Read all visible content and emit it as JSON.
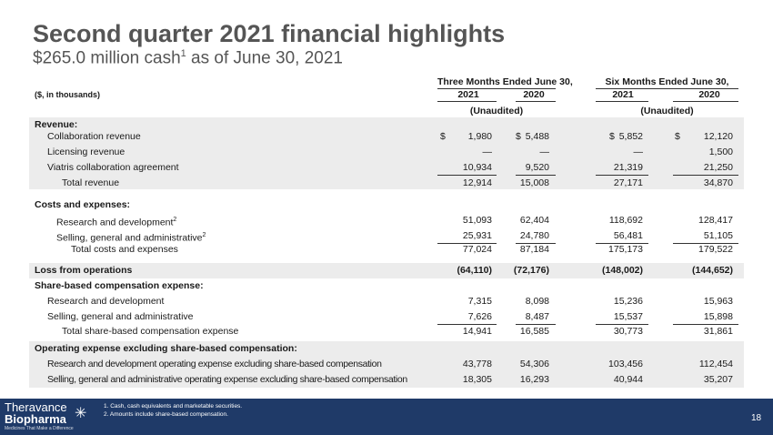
{
  "title": "Second quarter 2021 financial highlights",
  "subtitle": {
    "text": "$265.0 million cash",
    "sup": "1",
    "rest": " as of June 30, 2021"
  },
  "header": {
    "units": "($, in thousands)",
    "three": "Three Months Ended June 30,",
    "six": "Six Months Ended June 30,",
    "years": [
      "2021",
      "2020",
      "2021",
      "2020"
    ],
    "unaudited": "(Unaudited)"
  },
  "rows": [
    {
      "label": "Revenue:",
      "bold": true
    },
    {
      "label": "Collaboration revenue",
      "values": [
        "1,980",
        "5,488",
        "5,852",
        "12,120"
      ],
      "dollar": "$"
    },
    {
      "label": "Licensing revenue",
      "values": [
        "—",
        "—",
        "—",
        "1,500"
      ]
    },
    {
      "label": "Viatris collaboration agreement",
      "values": [
        "10,934",
        "9,520",
        "21,319",
        "21,250"
      ]
    },
    {
      "label": "Total revenue",
      "values": [
        "12,914",
        "15,008",
        "27,171",
        "34,870"
      ]
    },
    {
      "label": "Costs and expenses:",
      "bold": true
    },
    {
      "label": "Research and development",
      "sup": "2",
      "values": [
        "51,093",
        "62,404",
        "118,692",
        "128,417"
      ]
    },
    {
      "label": "Selling, general and administrative",
      "sup": "2",
      "values": [
        "25,931",
        "24,780",
        "56,481",
        "51,105"
      ]
    },
    {
      "label": "Total costs and expenses",
      "values": [
        "77,024",
        "87,184",
        "175,173",
        "179,522"
      ]
    },
    {
      "label": "Loss from operations",
      "bold": true,
      "values": [
        "(64,110)",
        "(72,176)",
        "(148,002)",
        "(144,652)"
      ]
    },
    {
      "label": "Share-based compensation expense:",
      "bold": true
    },
    {
      "label": "Research and development",
      "values": [
        "7,315",
        "8,098",
        "15,236",
        "15,963"
      ]
    },
    {
      "label": "Selling, general and administrative",
      "values": [
        "7,626",
        "8,487",
        "15,537",
        "15,898"
      ]
    },
    {
      "label": "Total share-based compensation expense",
      "values": [
        "14,941",
        "16,585",
        "30,773",
        "31,861"
      ]
    },
    {
      "label": "Operating expense excluding share-based compensation:",
      "bold": true
    },
    {
      "label": "Research and development operating expense excluding share-based compensation",
      "values": [
        "43,778",
        "54,306",
        "103,456",
        "112,454"
      ]
    },
    {
      "label": "Selling, general and administrative operating expense excluding share-based compensation",
      "values": [
        "18,305",
        "16,293",
        "40,944",
        "35,207"
      ]
    }
  ],
  "footer": {
    "logo1": "Theravance",
    "logo2": "Biopharma",
    "tagline": "Medicines That Make a Difference",
    "notes": [
      "1. Cash, cash equivalents and marketable securities.",
      "2. Amounts include share-based compensation."
    ],
    "page": "18"
  }
}
